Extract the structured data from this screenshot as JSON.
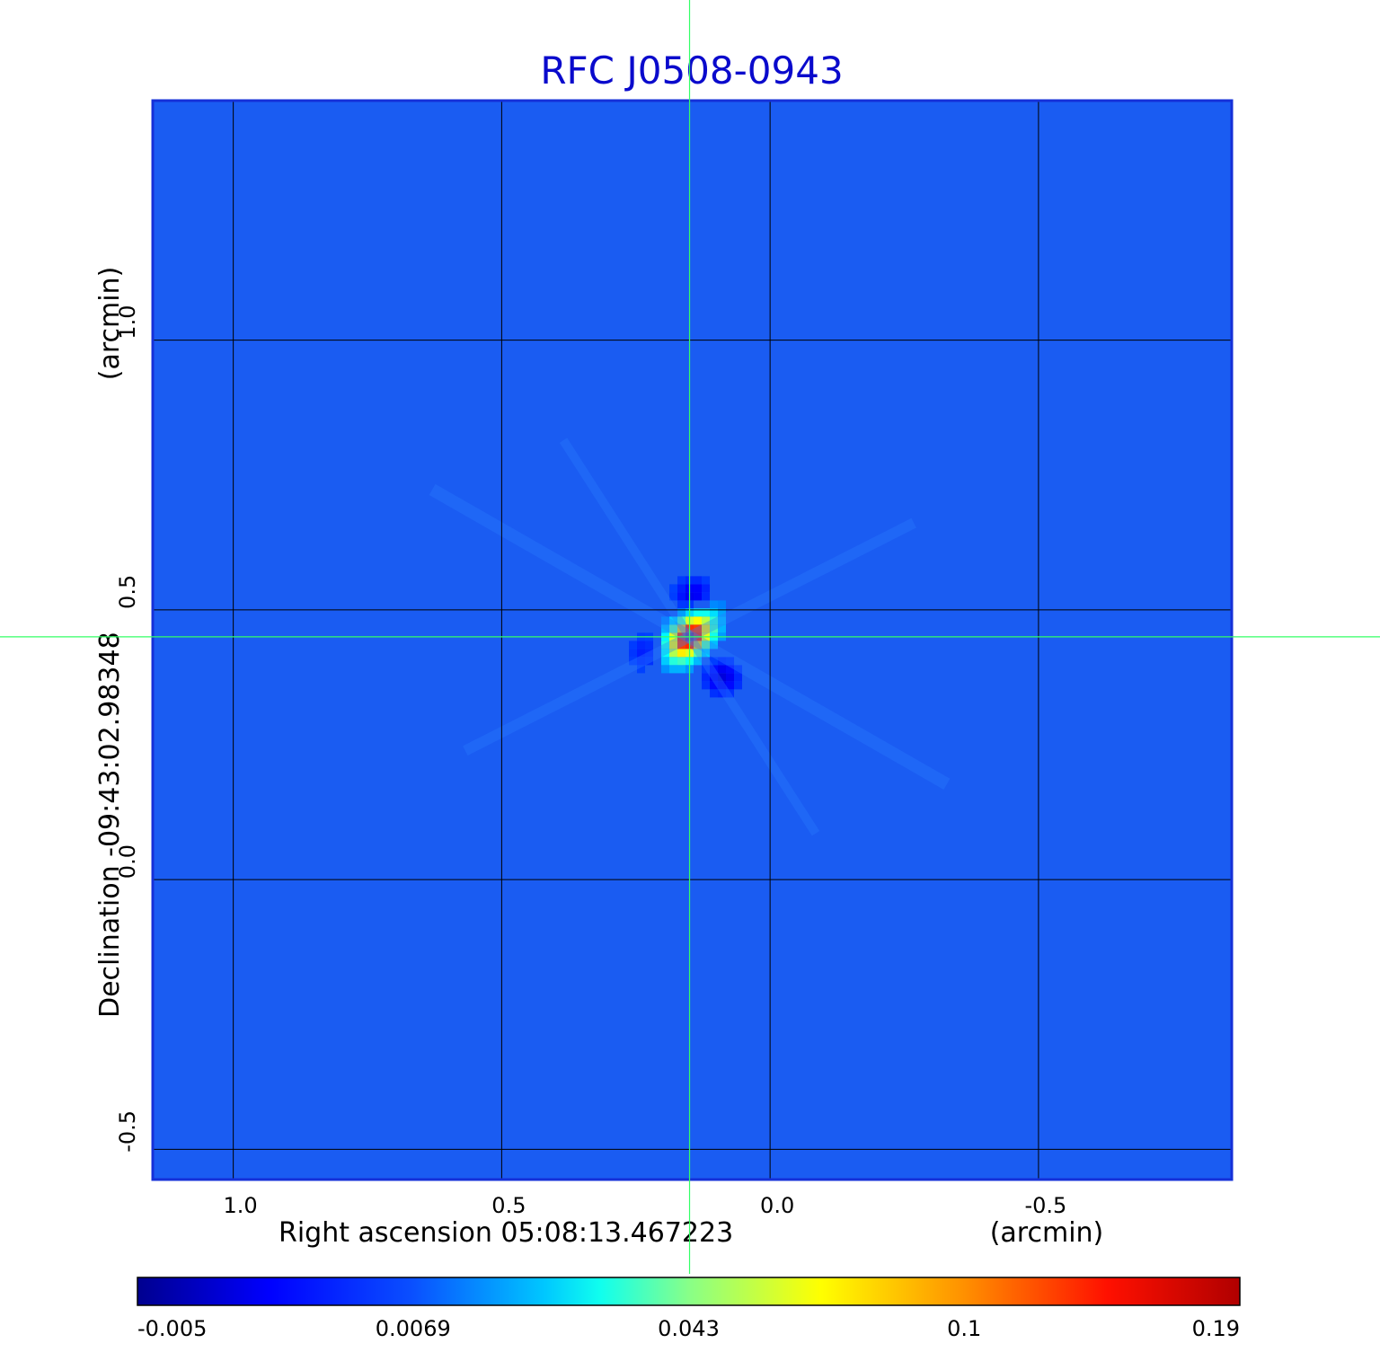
{
  "chart_data": {
    "type": "heatmap",
    "title": "RFC J0508-0943",
    "title_color": "#0a0acc",
    "xlabel": "Right ascension  05:08:13.467223",
    "xunit": "(arcmin)",
    "ylabel": "Declination  -09:43:02.98348",
    "yunit": "(arcmin)",
    "xlim": [
      1.15,
      -0.86
    ],
    "ylim": [
      -0.556,
      1.444
    ],
    "xticks": [
      {
        "value": 1.0,
        "label": "1.0"
      },
      {
        "value": 0.5,
        "label": "0.5"
      },
      {
        "value": 0.0,
        "label": "0.0"
      },
      {
        "value": -0.5,
        "label": "-0.5"
      }
    ],
    "yticks": [
      {
        "value": 1.0,
        "label": "1.0"
      },
      {
        "value": 0.5,
        "label": "0.5"
      },
      {
        "value": 0.0,
        "label": "0.0"
      },
      {
        "value": -0.5,
        "label": "-0.5"
      }
    ],
    "grid": true,
    "crosshair": {
      "x": 0.15,
      "y": 0.45,
      "color": "#33ff66"
    },
    "peak": {
      "x": 0.15,
      "y": 0.45,
      "value": 0.19
    },
    "background_value": 0.0,
    "colormap": "jet",
    "colorbar": {
      "ticks": [
        "-0.005",
        "0.0069",
        "0.043",
        "0.1",
        "0.19"
      ]
    }
  }
}
